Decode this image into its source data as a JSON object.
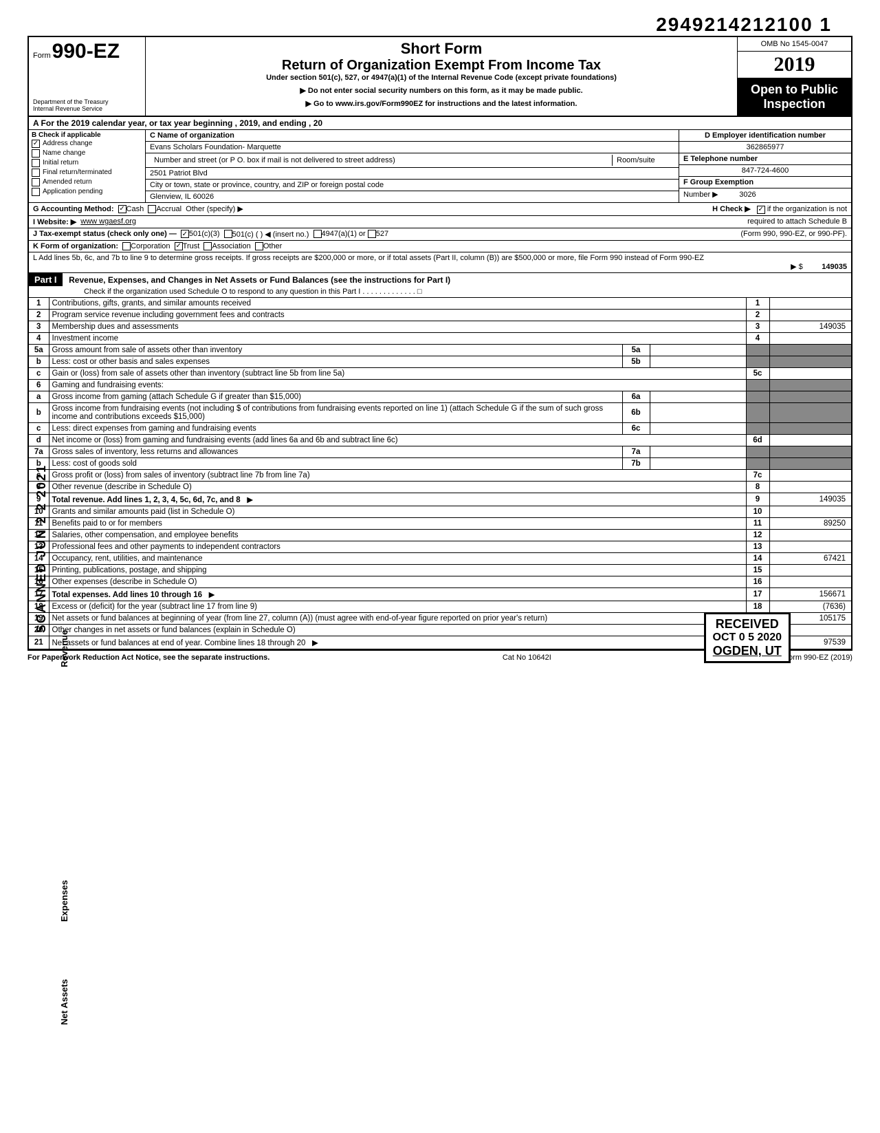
{
  "top_id": "2949214212100  1",
  "form": {
    "label": "Form",
    "number": "990-EZ"
  },
  "dept": "Department of the Treasury\nInternal Revenue Service",
  "title1": "Short Form",
  "title2": "Return of Organization Exempt From Income Tax",
  "subtitle": "Under section 501(c), 527, or 4947(a)(1) of the Internal Revenue Code (except private foundations)",
  "note1": "▶ Do not enter social security numbers on this form, as it may be made public.",
  "note2": "▶ Go to www.irs.gov/Form990EZ for instructions and the latest information.",
  "omb": "OMB No 1545-0047",
  "year": "2019",
  "open1": "Open to Public",
  "open2": "Inspection",
  "line_a": "A  For the 2019 calendar year, or tax year beginning                                             , 2019, and ending                                  , 20",
  "b": {
    "header": "B  Check if applicable",
    "items": [
      "Address change",
      "Name change",
      "Initial return",
      "Final return/terminated",
      "Amended return",
      "Application pending"
    ],
    "checked": [
      true,
      false,
      false,
      false,
      false,
      false
    ]
  },
  "c_label": "C  Name of organization",
  "c_value": "Evans Scholars Foundation- Marquette",
  "addr_label": "Number and street (or P O. box if mail is not delivered to street address)",
  "room_label": "Room/suite",
  "addr_value": "2501 Patriot Blvd",
  "city_label": "City or town, state or province, country, and ZIP or foreign postal code",
  "city_value": "Glenview, IL 60026",
  "d_label": "D  Employer identification number",
  "d_value": "362865977",
  "e_label": "E  Telephone number",
  "e_value": "847-724-4600",
  "f_label": "F  Group Exemption",
  "f_label2": "Number ▶",
  "f_value": "3026",
  "g_label": "G  Accounting Method:",
  "g_cash": "Cash",
  "g_accrual": "Accrual",
  "g_other": "Other (specify) ▶",
  "h_label": "H  Check ▶",
  "h_text": "if the organization is not required to attach Schedule B (Form 990, 990-EZ, or 990-PF).",
  "i_label": "I  Website: ▶",
  "i_value": "www wgaesf.org",
  "j_label": "J  Tax-exempt status (check only one) —",
  "j_501c3": "501(c)(3)",
  "j_501c": "501(c) (       ) ◀ (insert no.)",
  "j_4947": "4947(a)(1) or",
  "j_527": "527",
  "k_label": "K  Form of organization:",
  "k_opts": [
    "Corporation",
    "Trust",
    "Association",
    "Other"
  ],
  "l_text": "L  Add lines 5b, 6c, and 7b to line 9 to determine gross receipts. If gross receipts are $200,000 or more, or if total assets (Part II, column (B)) are $500,000 or more, file Form 990 instead of Form 990-EZ",
  "l_arrow": "▶  $",
  "l_value": "149035",
  "part1": {
    "tag": "Part I",
    "title": "Revenue, Expenses, and Changes in Net Assets or Fund Balances (see the instructions for Part I)",
    "check": "Check if the organization used Schedule O to respond to any question in this Part I  .  .  .  .  .  .  .  .  .  .  .  .  .  □"
  },
  "lines": [
    {
      "n": "1",
      "d": "Contributions, gifts, grants, and similar amounts received",
      "r": "1",
      "v": ""
    },
    {
      "n": "2",
      "d": "Program service revenue including government fees and contracts",
      "r": "2",
      "v": ""
    },
    {
      "n": "3",
      "d": "Membership dues and assessments",
      "r": "3",
      "v": "149035"
    },
    {
      "n": "4",
      "d": "Investment income",
      "r": "4",
      "v": ""
    },
    {
      "n": "5a",
      "d": "Gross amount from sale of assets other than inventory",
      "m": "5a"
    },
    {
      "n": "b",
      "d": "Less: cost or other basis and sales expenses",
      "m": "5b"
    },
    {
      "n": "c",
      "d": "Gain or (loss) from sale of assets other than inventory (subtract line 5b from line 5a)",
      "r": "5c",
      "v": ""
    },
    {
      "n": "6",
      "d": "Gaming and fundraising events:"
    },
    {
      "n": "a",
      "d": "Gross income from gaming (attach Schedule G if greater than $15,000)",
      "m": "6a"
    },
    {
      "n": "b",
      "d": "Gross income from fundraising events (not including  $                    of contributions from fundraising events reported on line 1) (attach Schedule G if the sum of such gross income and contributions exceeds $15,000)",
      "m": "6b"
    },
    {
      "n": "c",
      "d": "Less: direct expenses from gaming and fundraising events",
      "m": "6c"
    },
    {
      "n": "d",
      "d": "Net income or (loss) from gaming and fundraising events (add lines 6a and 6b and subtract line 6c)",
      "r": "6d",
      "v": ""
    },
    {
      "n": "7a",
      "d": "Gross sales of inventory, less returns and allowances",
      "m": "7a"
    },
    {
      "n": "b",
      "d": "Less: cost of goods sold",
      "m": "7b"
    },
    {
      "n": "c",
      "d": "Gross profit or (loss) from sales of inventory (subtract line 7b from line 7a)",
      "r": "7c",
      "v": ""
    },
    {
      "n": "8",
      "d": "Other revenue (describe in Schedule O)",
      "r": "8",
      "v": ""
    },
    {
      "n": "9",
      "d": "Total revenue. Add lines 1, 2, 3, 4, 5c, 6d, 7c, and 8",
      "r": "9",
      "v": "149035",
      "bold": true,
      "arrow": true
    },
    {
      "n": "10",
      "d": "Grants and similar amounts paid (list in Schedule O)",
      "r": "10",
      "v": ""
    },
    {
      "n": "11",
      "d": "Benefits paid to or for members",
      "r": "11",
      "v": "89250"
    },
    {
      "n": "12",
      "d": "Salaries, other compensation, and employee benefits",
      "r": "12",
      "v": ""
    },
    {
      "n": "13",
      "d": "Professional fees and other payments to independent contractors",
      "r": "13",
      "v": ""
    },
    {
      "n": "14",
      "d": "Occupancy, rent, utilities, and maintenance",
      "r": "14",
      "v": "67421"
    },
    {
      "n": "15",
      "d": "Printing, publications, postage, and shipping",
      "r": "15",
      "v": ""
    },
    {
      "n": "16",
      "d": "Other expenses (describe in Schedule O)",
      "r": "16",
      "v": ""
    },
    {
      "n": "17",
      "d": "Total expenses. Add lines 10 through 16",
      "r": "17",
      "v": "156671",
      "bold": true,
      "arrow": true
    },
    {
      "n": "18",
      "d": "Excess or (deficit) for the year (subtract line 17 from line 9)",
      "r": "18",
      "v": "(7636)"
    },
    {
      "n": "19",
      "d": "Net assets or fund balances at beginning of year (from line 27, column (A)) (must agree with end-of-year figure reported on prior year's return)",
      "r": "19",
      "v": "105175"
    },
    {
      "n": "20",
      "d": "Other changes in net assets or fund balances (explain in Schedule O)",
      "r": "20",
      "v": ""
    },
    {
      "n": "21",
      "d": "Net assets or fund balances at end of year. Combine lines 18 through 20",
      "r": "21",
      "v": "97539",
      "arrow": true
    }
  ],
  "stamp": {
    "title": "RECEIVED",
    "date": "OCT 0 5 2020",
    "loc": "OGDEN, UT"
  },
  "scanned": "SCANNED JUN 2 2 2021",
  "side_rev": "Revenue",
  "side_exp": "Expenses",
  "side_net": "Net Assets",
  "footer": {
    "left": "For Paperwork Reduction Act Notice, see the separate instructions.",
    "mid": "Cat No 10642I",
    "right": "Form 990-EZ (2019)"
  }
}
